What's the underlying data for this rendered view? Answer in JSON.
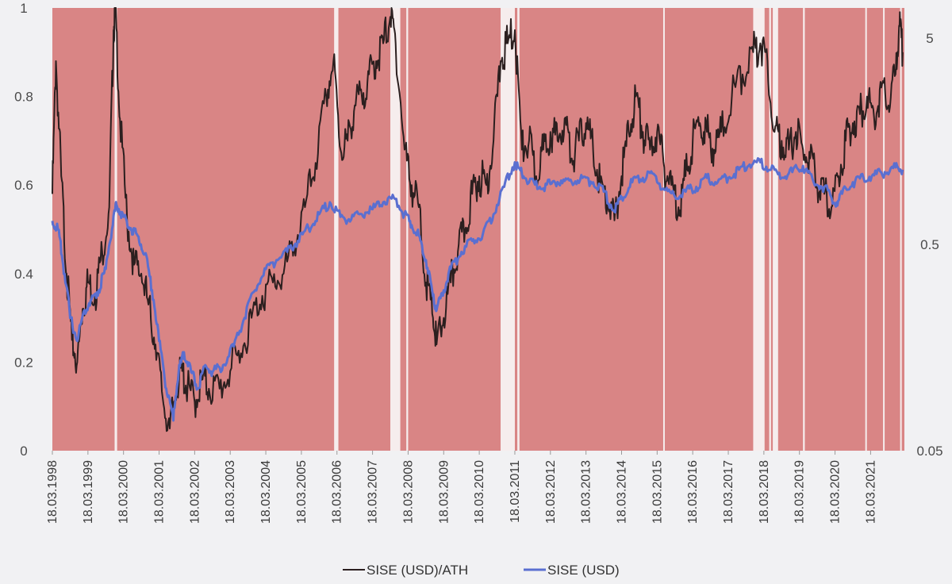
{
  "chart_data": {
    "type": "line",
    "title": "",
    "left_axis": {
      "min": 0,
      "max": 1,
      "ticks": [
        "0",
        "0.2",
        "0.4",
        "0.6",
        "0.8",
        "1"
      ]
    },
    "right_axis": {
      "scale": "log",
      "min": 0.05,
      "max": 7,
      "ticks": [
        "0.05",
        "0.5",
        "5"
      ]
    },
    "x_ticks": [
      "18.03.1998",
      "18.03.1999",
      "18.03.2000",
      "18.03.2001",
      "18.03.2002",
      "18.03.2003",
      "18.03.2004",
      "18.03.2005",
      "18.03.2006",
      "18.03.2007",
      "18.03.2008",
      "18.03.2009",
      "18.03.2010",
      "18.03.2011",
      "18.03.2012",
      "18.03.2013",
      "18.03.2014",
      "18.03.2015",
      "18.03.2016",
      "18.03.2017",
      "18.03.2018",
      "18.03.2019",
      "18.03.2020",
      "18.03.2021"
    ],
    "x_range": [
      1998.2,
      2022.15
    ],
    "background_color": "#d98585",
    "gap_color": "#f6eded",
    "white_gaps": [
      [
        1999.95,
        2000.02
      ],
      [
        2006.12,
        2006.24
      ],
      [
        2007.7,
        2007.98
      ],
      [
        2008.15,
        2008.2
      ],
      [
        2010.8,
        2011.2
      ],
      [
        2011.27,
        2011.33
      ],
      [
        2015.37,
        2015.41
      ],
      [
        2017.9,
        2018.22
      ],
      [
        2018.35,
        2018.4
      ],
      [
        2018.45,
        2018.6
      ],
      [
        2019.3,
        2019.35
      ],
      [
        2021.05,
        2021.09
      ],
      [
        2021.55,
        2021.58
      ],
      [
        2022.03,
        2022.07
      ]
    ],
    "legend_position": "bottom",
    "series": [
      {
        "name": "SISE (USD)/ATH",
        "axis": "left",
        "color": "#2b1f1f",
        "points": [
          [
            1998.2,
            0.58
          ],
          [
            1998.3,
            0.88
          ],
          [
            1998.45,
            0.62
          ],
          [
            1998.6,
            0.4
          ],
          [
            1998.75,
            0.25
          ],
          [
            1998.9,
            0.2
          ],
          [
            1999.05,
            0.32
          ],
          [
            1999.2,
            0.38
          ],
          [
            1999.4,
            0.35
          ],
          [
            1999.6,
            0.45
          ],
          [
            1999.8,
            0.55
          ],
          [
            1999.92,
            0.95
          ],
          [
            1999.97,
            1.0
          ],
          [
            2000.1,
            0.75
          ],
          [
            2000.3,
            0.52
          ],
          [
            2000.5,
            0.42
          ],
          [
            2000.7,
            0.4
          ],
          [
            2000.9,
            0.33
          ],
          [
            2001.1,
            0.24
          ],
          [
            2001.3,
            0.12
          ],
          [
            2001.5,
            0.05
          ],
          [
            2001.7,
            0.15
          ],
          [
            2001.85,
            0.18
          ],
          [
            2002.0,
            0.14
          ],
          [
            2002.2,
            0.11
          ],
          [
            2002.4,
            0.16
          ],
          [
            2002.6,
            0.14
          ],
          [
            2002.9,
            0.14
          ],
          [
            2003.2,
            0.18
          ],
          [
            2003.5,
            0.22
          ],
          [
            2003.8,
            0.3
          ],
          [
            2004.1,
            0.35
          ],
          [
            2004.4,
            0.38
          ],
          [
            2004.7,
            0.4
          ],
          [
            2005.0,
            0.46
          ],
          [
            2005.3,
            0.55
          ],
          [
            2005.6,
            0.65
          ],
          [
            2005.9,
            0.8
          ],
          [
            2006.1,
            0.88
          ],
          [
            2006.3,
            0.68
          ],
          [
            2006.5,
            0.7
          ],
          [
            2006.7,
            0.78
          ],
          [
            2006.9,
            0.8
          ],
          [
            2007.1,
            0.85
          ],
          [
            2007.3,
            0.88
          ],
          [
            2007.5,
            0.92
          ],
          [
            2007.7,
            0.98
          ],
          [
            2007.85,
            0.92
          ],
          [
            2008.1,
            0.68
          ],
          [
            2008.3,
            0.6
          ],
          [
            2008.5,
            0.55
          ],
          [
            2008.7,
            0.38
          ],
          [
            2008.9,
            0.3
          ],
          [
            2009.0,
            0.24
          ],
          [
            2009.2,
            0.3
          ],
          [
            2009.4,
            0.38
          ],
          [
            2009.6,
            0.45
          ],
          [
            2009.8,
            0.5
          ],
          [
            2010.0,
            0.58
          ],
          [
            2010.2,
            0.62
          ],
          [
            2010.4,
            0.6
          ],
          [
            2010.6,
            0.7
          ],
          [
            2010.8,
            0.88
          ],
          [
            2011.0,
            0.92
          ],
          [
            2011.2,
            0.95
          ],
          [
            2011.4,
            0.68
          ],
          [
            2011.6,
            0.7
          ],
          [
            2011.8,
            0.62
          ],
          [
            2012.0,
            0.68
          ],
          [
            2012.2,
            0.72
          ],
          [
            2012.4,
            0.7
          ],
          [
            2012.6,
            0.75
          ],
          [
            2012.8,
            0.66
          ],
          [
            2013.0,
            0.7
          ],
          [
            2013.2,
            0.74
          ],
          [
            2013.4,
            0.68
          ],
          [
            2013.6,
            0.6
          ],
          [
            2013.8,
            0.56
          ],
          [
            2014.0,
            0.52
          ],
          [
            2014.2,
            0.62
          ],
          [
            2014.4,
            0.72
          ],
          [
            2014.6,
            0.8
          ],
          [
            2014.8,
            0.72
          ],
          [
            2015.0,
            0.68
          ],
          [
            2015.2,
            0.72
          ],
          [
            2015.4,
            0.64
          ],
          [
            2015.6,
            0.6
          ],
          [
            2015.8,
            0.55
          ],
          [
            2016.0,
            0.62
          ],
          [
            2016.2,
            0.7
          ],
          [
            2016.4,
            0.74
          ],
          [
            2016.6,
            0.72
          ],
          [
            2016.8,
            0.68
          ],
          [
            2017.0,
            0.72
          ],
          [
            2017.3,
            0.8
          ],
          [
            2017.6,
            0.85
          ],
          [
            2017.9,
            0.9
          ],
          [
            2018.1,
            0.92
          ],
          [
            2018.3,
            0.88
          ],
          [
            2018.5,
            0.72
          ],
          [
            2018.7,
            0.7
          ],
          [
            2018.9,
            0.68
          ],
          [
            2019.1,
            0.72
          ],
          [
            2019.3,
            0.68
          ],
          [
            2019.5,
            0.66
          ],
          [
            2019.7,
            0.6
          ],
          [
            2019.9,
            0.58
          ],
          [
            2020.1,
            0.55
          ],
          [
            2020.3,
            0.62
          ],
          [
            2020.5,
            0.7
          ],
          [
            2020.7,
            0.74
          ],
          [
            2020.9,
            0.76
          ],
          [
            2021.1,
            0.8
          ],
          [
            2021.3,
            0.75
          ],
          [
            2021.5,
            0.82
          ],
          [
            2021.7,
            0.78
          ],
          [
            2021.9,
            0.85
          ],
          [
            2022.0,
            0.96
          ],
          [
            2022.1,
            0.9
          ]
        ]
      },
      {
        "name": "SISE (USD)",
        "axis": "right",
        "color": "#5a6fd0",
        "points": [
          [
            1998.2,
            0.65
          ],
          [
            1998.35,
            0.6
          ],
          [
            1998.5,
            0.4
          ],
          [
            1998.7,
            0.22
          ],
          [
            1998.9,
            0.17
          ],
          [
            1999.1,
            0.24
          ],
          [
            1999.3,
            0.27
          ],
          [
            1999.5,
            0.3
          ],
          [
            1999.7,
            0.38
          ],
          [
            1999.9,
            0.62
          ],
          [
            2000.0,
            0.78
          ],
          [
            2000.2,
            0.68
          ],
          [
            2000.4,
            0.6
          ],
          [
            2000.6,
            0.55
          ],
          [
            2000.8,
            0.45
          ],
          [
            2001.0,
            0.3
          ],
          [
            2001.2,
            0.17
          ],
          [
            2001.4,
            0.1
          ],
          [
            2001.6,
            0.07
          ],
          [
            2001.75,
            0.12
          ],
          [
            2001.9,
            0.15
          ],
          [
            2002.1,
            0.12
          ],
          [
            2002.3,
            0.1
          ],
          [
            2002.5,
            0.13
          ],
          [
            2002.7,
            0.12
          ],
          [
            2003.0,
            0.13
          ],
          [
            2003.3,
            0.16
          ],
          [
            2003.6,
            0.22
          ],
          [
            2003.9,
            0.3
          ],
          [
            2004.2,
            0.38
          ],
          [
            2004.5,
            0.42
          ],
          [
            2004.8,
            0.46
          ],
          [
            2005.1,
            0.52
          ],
          [
            2005.4,
            0.6
          ],
          [
            2005.7,
            0.7
          ],
          [
            2006.0,
            0.8
          ],
          [
            2006.3,
            0.68
          ],
          [
            2006.6,
            0.66
          ],
          [
            2006.9,
            0.7
          ],
          [
            2007.2,
            0.74
          ],
          [
            2007.5,
            0.8
          ],
          [
            2007.8,
            0.84
          ],
          [
            2008.1,
            0.7
          ],
          [
            2008.3,
            0.62
          ],
          [
            2008.5,
            0.55
          ],
          [
            2008.7,
            0.42
          ],
          [
            2008.9,
            0.28
          ],
          [
            2009.0,
            0.24
          ],
          [
            2009.2,
            0.3
          ],
          [
            2009.4,
            0.38
          ],
          [
            2009.7,
            0.46
          ],
          [
            2010.0,
            0.52
          ],
          [
            2010.3,
            0.56
          ],
          [
            2010.6,
            0.7
          ],
          [
            2010.9,
            0.95
          ],
          [
            2011.2,
            1.25
          ],
          [
            2011.4,
            1.1
          ],
          [
            2011.6,
            1.0
          ],
          [
            2011.9,
            0.95
          ],
          [
            2012.2,
            0.98
          ],
          [
            2012.5,
            1.02
          ],
          [
            2012.8,
            1.0
          ],
          [
            2013.1,
            1.05
          ],
          [
            2013.4,
            1.0
          ],
          [
            2013.7,
            0.9
          ],
          [
            2014.0,
            0.72
          ],
          [
            2014.2,
            0.85
          ],
          [
            2014.5,
            1.0
          ],
          [
            2014.8,
            1.05
          ],
          [
            2015.1,
            1.1
          ],
          [
            2015.4,
            0.92
          ],
          [
            2015.7,
            0.85
          ],
          [
            2016.0,
            0.9
          ],
          [
            2016.3,
            0.95
          ],
          [
            2016.6,
            1.05
          ],
          [
            2016.9,
            1.0
          ],
          [
            2017.2,
            1.05
          ],
          [
            2017.5,
            1.15
          ],
          [
            2017.8,
            1.22
          ],
          [
            2018.1,
            1.25
          ],
          [
            2018.4,
            1.15
          ],
          [
            2018.7,
            1.05
          ],
          [
            2019.0,
            1.12
          ],
          [
            2019.3,
            1.2
          ],
          [
            2019.6,
            1.0
          ],
          [
            2019.9,
            0.95
          ],
          [
            2020.2,
            0.78
          ],
          [
            2020.4,
            0.88
          ],
          [
            2020.7,
            1.0
          ],
          [
            2021.0,
            1.05
          ],
          [
            2021.3,
            1.08
          ],
          [
            2021.6,
            1.12
          ],
          [
            2021.9,
            1.18
          ],
          [
            2022.1,
            1.15
          ]
        ]
      }
    ]
  }
}
